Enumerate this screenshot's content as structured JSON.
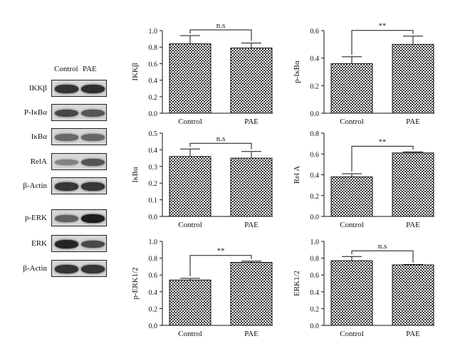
{
  "blot": {
    "lane_labels": [
      "Control",
      "PAE"
    ],
    "rows": [
      {
        "label": "IKKβ",
        "bands": [
          0.82,
          0.85
        ]
      },
      {
        "label": "P-IκBα",
        "bands": [
          0.7,
          0.62
        ]
      },
      {
        "label": "IκBα",
        "bands": [
          0.5,
          0.52
        ]
      },
      {
        "label": "RelA",
        "bands": [
          0.35,
          0.62
        ]
      },
      {
        "label": "β-Actin",
        "bands": [
          0.8,
          0.8
        ]
      },
      {
        "label": "p-ERK",
        "bands": [
          0.55,
          0.95
        ]
      },
      {
        "label": "ERK",
        "bands": [
          0.9,
          0.7
        ]
      },
      {
        "label": "β-Actin",
        "bands": [
          0.82,
          0.8
        ]
      }
    ]
  },
  "chart_data": [
    {
      "type": "bar",
      "categories": [
        "Control",
        "PAE"
      ],
      "values": [
        0.84,
        0.79
      ],
      "errors": [
        0.1,
        0.06
      ],
      "ylabel": "IKKβ",
      "ylim": [
        0,
        1.0
      ],
      "ticks": [
        "0.0",
        "0.2",
        "0.4",
        "0.6",
        "0.8",
        "1.0"
      ],
      "significance": "n.s"
    },
    {
      "type": "bar",
      "categories": [
        "Control",
        "PAE"
      ],
      "values": [
        0.36,
        0.5
      ],
      "errors": [
        0.05,
        0.06
      ],
      "ylabel": "p-IκBα",
      "ylim": [
        0,
        0.6
      ],
      "ticks": [
        "0.0",
        "0.2",
        "0.4",
        "0.6"
      ],
      "significance": "**"
    },
    {
      "type": "bar",
      "categories": [
        "Control",
        "PAE"
      ],
      "values": [
        0.36,
        0.35
      ],
      "errors": [
        0.045,
        0.04
      ],
      "ylabel": "IκBα",
      "ylim": [
        0,
        0.5
      ],
      "ticks": [
        "0.0",
        "0.1",
        "0.2",
        "0.3",
        "0.4",
        "0.5"
      ],
      "significance": "n.s"
    },
    {
      "type": "bar",
      "categories": [
        "Control",
        "PAE"
      ],
      "values": [
        0.38,
        0.61
      ],
      "errors": [
        0.03,
        0.01
      ],
      "ylabel": "Rel A",
      "ylim": [
        0,
        0.8
      ],
      "ticks": [
        "0.0",
        "0.2",
        "0.4",
        "0.6",
        "0.8"
      ],
      "significance": "**"
    },
    {
      "type": "bar",
      "categories": [
        "Control",
        "PAE"
      ],
      "values": [
        0.54,
        0.75
      ],
      "errors": [
        0.02,
        0.015
      ],
      "ylabel": "p-ERK1/2",
      "ylim": [
        0,
        1.0
      ],
      "ticks": [
        "0.0",
        "0.2",
        "0.4",
        "0.6",
        "0.8",
        "1.0"
      ],
      "significance": "**"
    },
    {
      "type": "bar",
      "categories": [
        "Control",
        "PAE"
      ],
      "values": [
        0.77,
        0.72
      ],
      "errors": [
        0.05,
        0.005
      ],
      "ylabel": "ERK1/2",
      "ylim": [
        0,
        1.0
      ],
      "ticks": [
        "0.0",
        "0.2",
        "0.4",
        "0.6",
        "0.8",
        "1.0"
      ],
      "significance": "n.s"
    }
  ]
}
